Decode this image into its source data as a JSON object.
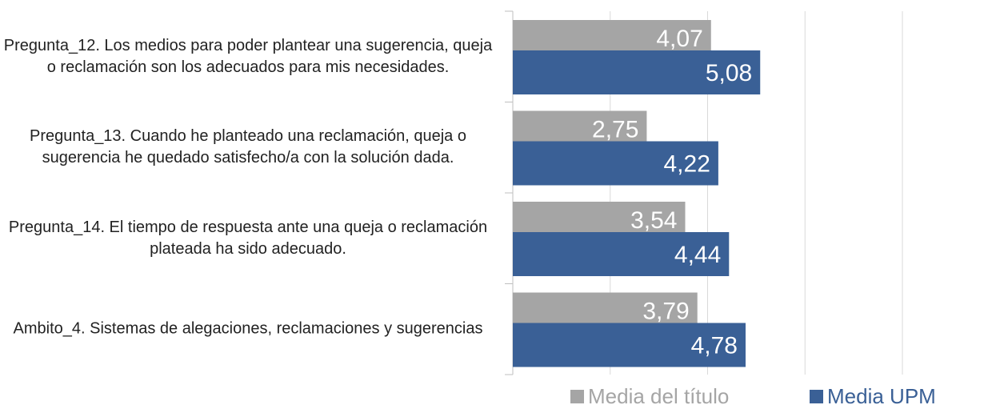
{
  "chart_data": {
    "type": "bar",
    "orientation": "horizontal",
    "categories": [
      "Pregunta_12. Los medios para poder plantear una sugerencia, queja o reclamación son los adecuados para mis necesidades.",
      "Pregunta_13. Cuando he planteado una reclamación, queja o sugerencia he quedado satisfecho/a con la solución dada.",
      "Pregunta_14. El tiempo de respuesta ante una queja o reclamación plateada ha sido adecuado.",
      "Ambito_4. Sistemas de alegaciones, reclamaciones y sugerencias"
    ],
    "series": [
      {
        "name": "Media del título",
        "color": "#a5a5a5",
        "values": [
          4.07,
          2.75,
          3.54,
          3.79
        ],
        "value_labels": [
          "4,07",
          "2,75",
          "3,54",
          "3,79"
        ]
      },
      {
        "name": "Media UPM",
        "color": "#3a6096",
        "values": [
          5.08,
          4.22,
          4.44,
          4.78
        ],
        "value_labels": [
          "5,08",
          "4,22",
          "4,44",
          "4,78"
        ]
      }
    ],
    "xlim": [
      0,
      8
    ],
    "xticks": [
      0,
      2,
      4,
      6,
      8
    ],
    "grid": true,
    "legend": "bottom"
  }
}
